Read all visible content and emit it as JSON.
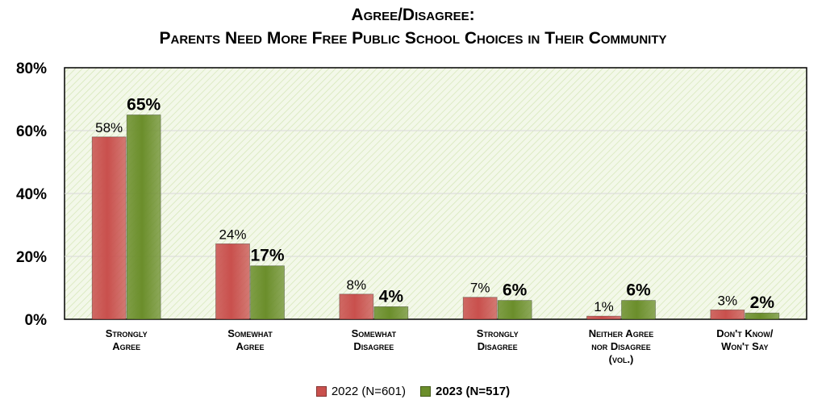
{
  "title": {
    "line1": "Agree/Disagree:",
    "line2": "Parents Need More Free Public School Choices in Their Community"
  },
  "legend": {
    "items": [
      {
        "label": "2022 (N=601)",
        "color": "#c9504d"
      },
      {
        "label": "2023 (N=517)",
        "color": "#6b8e2b"
      }
    ]
  },
  "chart_data": {
    "type": "bar",
    "categories": [
      [
        "Strongly",
        "Agree"
      ],
      [
        "Somewhat",
        "Agree"
      ],
      [
        "Somewhat",
        "Disagree"
      ],
      [
        "Strongly",
        "Disagree"
      ],
      [
        "Neither Agree",
        "nor Disagree",
        "(vol.)"
      ],
      [
        "Don't Know/",
        "Won't Say"
      ]
    ],
    "series": [
      {
        "name": "2022 (N=601)",
        "values": [
          58,
          24,
          8,
          7,
          1,
          3
        ],
        "labels": [
          "58%",
          "24%",
          "8%",
          "7%",
          "1%",
          "3%"
        ],
        "color": "#c9504d",
        "bold_labels": false
      },
      {
        "name": "2023 (N=517)",
        "values": [
          65,
          17,
          4,
          6,
          6,
          2
        ],
        "labels": [
          "65%",
          "17%",
          "4%",
          "6%",
          "6%",
          "2%"
        ],
        "color": "#6b8e2b",
        "bold_labels": true
      }
    ],
    "ylim": [
      0,
      80
    ],
    "yticks": [
      "0%",
      "20%",
      "40%",
      "60%",
      "80%"
    ],
    "ytick_values": [
      0,
      20,
      40,
      60,
      80
    ],
    "grid": true,
    "plot_background": "#f3f8e9",
    "legend_position": "bottom"
  }
}
